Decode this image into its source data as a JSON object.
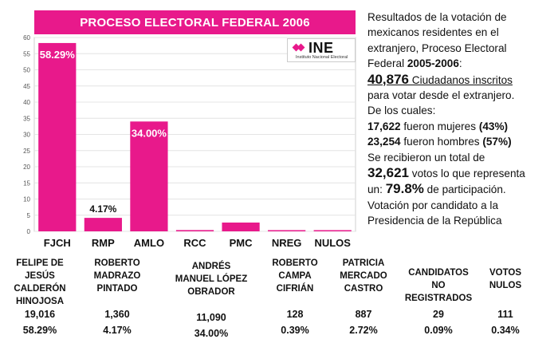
{
  "chart_data": {
    "type": "bar",
    "title": "PROCESO ELECTORAL FEDERAL 2006",
    "categories": [
      "FJCH",
      "RMP",
      "AMLO",
      "RCC",
      "PMC",
      "NREG",
      "NULOS"
    ],
    "values": [
      58.29,
      4.17,
      34.0,
      0.39,
      2.72,
      0.09,
      0.34
    ],
    "data_labels": [
      "58.29%",
      "4.17%",
      "34.00%",
      "",
      "",
      "",
      ""
    ],
    "yticks": [
      0,
      5,
      10,
      15,
      20,
      25,
      30,
      35,
      40,
      45,
      50,
      55,
      60
    ],
    "ylim": [
      0,
      60
    ],
    "xlabel": "",
    "ylabel": "",
    "bar_color": "#e8198b"
  },
  "logo": {
    "word": "INE",
    "subtitle": "Instituto Nacional Electoral"
  },
  "side": {
    "line1": "Resultados de la votación de",
    "line2": "mexicanos residentes en el",
    "line3": "extranjero, Proceso Electoral",
    "line4_a": "Federal ",
    "line4_b": "2005-2006",
    "line4_c": ":",
    "registered_count": "40,876",
    "registered_text": " Ciudadanos inscritos",
    "line6": "para votar desde el extranjero.",
    "line7": "De los cuales:",
    "women_count": "17,622",
    "women_text": " fueron mujeres ",
    "women_pct": "(43%)",
    "men_count": "23,254",
    "men_text": " fueron hombres ",
    "men_pct": "(57%)",
    "line10": "Se recibieron un total de",
    "votes_total": "32,621",
    "votes_text": " votos lo que representa",
    "part_prefix": "un: ",
    "part_pct": "79.8%",
    "part_text": " de participación.",
    "line13": "Votación por candidato a la",
    "line14": "Presidencia de la República"
  },
  "candidates": [
    {
      "name": [
        "FELIPE DE JESÚS",
        "CALDERÓN",
        "HINOJOSA"
      ],
      "votes": "19,016",
      "pct": "58.29%"
    },
    {
      "name": [
        "ROBERTO",
        "MADRAZO",
        "PINTADO"
      ],
      "votes": "1,360",
      "pct": "4.17%"
    },
    {
      "name": [
        "ANDRÉS",
        "MANUEL LÓPEZ",
        "OBRADOR"
      ],
      "votes": "11,090",
      "pct": "34.00%"
    },
    {
      "name": [
        "ROBERTO",
        "CAMPA",
        "CIFRIÁN"
      ],
      "votes": "128",
      "pct": "0.39%"
    },
    {
      "name": [
        "PATRICIA",
        "MERCADO",
        "CASTRO"
      ],
      "votes": "887",
      "pct": "2.72%"
    },
    {
      "name": [
        "CANDIDATOS NO",
        "REGISTRADOS"
      ],
      "votes": "29",
      "pct": "0.09%"
    },
    {
      "name": [
        "VOTOS",
        "NULOS"
      ],
      "votes": "111",
      "pct": "0.34%"
    }
  ]
}
